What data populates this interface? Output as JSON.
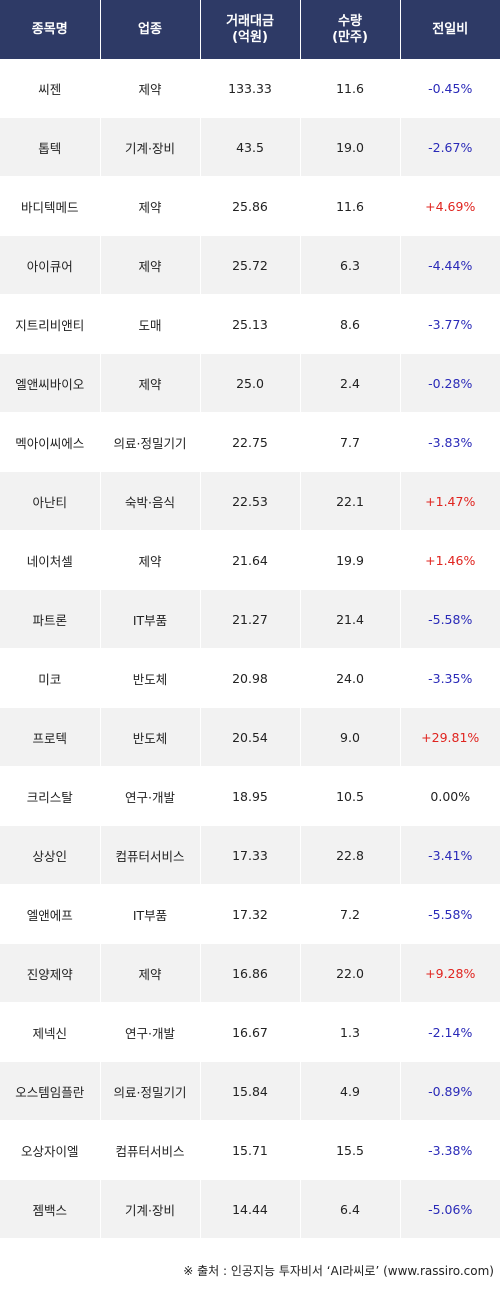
{
  "headers": {
    "name": "종목명",
    "sector": "업종",
    "value_l1": "거래대금",
    "value_l2": "(억원)",
    "volume_l1": "수량",
    "volume_l2": "(만주)",
    "change": "전일비"
  },
  "colors": {
    "header_bg": "#2e3a66",
    "up": "#e0241f",
    "down": "#2a2ab8",
    "even_row": "#f2f2f2"
  },
  "rows": [
    {
      "name": "씨젠",
      "sector": "제약",
      "value": "133.33",
      "volume": "11.6",
      "change": "-0.45%",
      "dir": "down"
    },
    {
      "name": "톱텍",
      "sector": "기계·장비",
      "value": "43.5",
      "volume": "19.0",
      "change": "-2.67%",
      "dir": "down"
    },
    {
      "name": "바디텍메드",
      "sector": "제약",
      "value": "25.86",
      "volume": "11.6",
      "change": "+4.69%",
      "dir": "up"
    },
    {
      "name": "아이큐어",
      "sector": "제약",
      "value": "25.72",
      "volume": "6.3",
      "change": "-4.44%",
      "dir": "down"
    },
    {
      "name": "지트리비앤티",
      "sector": "도매",
      "value": "25.13",
      "volume": "8.6",
      "change": "-3.77%",
      "dir": "down"
    },
    {
      "name": "엘앤씨바이오",
      "sector": "제약",
      "value": "25.0",
      "volume": "2.4",
      "change": "-0.28%",
      "dir": "down"
    },
    {
      "name": "멕아이씨에스",
      "sector": "의료·정밀기기",
      "value": "22.75",
      "volume": "7.7",
      "change": "-3.83%",
      "dir": "down"
    },
    {
      "name": "아난티",
      "sector": "숙박·음식",
      "value": "22.53",
      "volume": "22.1",
      "change": "+1.47%",
      "dir": "up"
    },
    {
      "name": "네이처셀",
      "sector": "제약",
      "value": "21.64",
      "volume": "19.9",
      "change": "+1.46%",
      "dir": "up"
    },
    {
      "name": "파트론",
      "sector": "IT부품",
      "value": "21.27",
      "volume": "21.4",
      "change": "-5.58%",
      "dir": "down"
    },
    {
      "name": "미코",
      "sector": "반도체",
      "value": "20.98",
      "volume": "24.0",
      "change": "-3.35%",
      "dir": "down"
    },
    {
      "name": "프로텍",
      "sector": "반도체",
      "value": "20.54",
      "volume": "9.0",
      "change": "+29.81%",
      "dir": "up"
    },
    {
      "name": "크리스탈",
      "sector": "연구·개발",
      "value": "18.95",
      "volume": "10.5",
      "change": "0.00%",
      "dir": "flat"
    },
    {
      "name": "상상인",
      "sector": "컴퓨터서비스",
      "value": "17.33",
      "volume": "22.8",
      "change": "-3.41%",
      "dir": "down"
    },
    {
      "name": "엘앤에프",
      "sector": "IT부품",
      "value": "17.32",
      "volume": "7.2",
      "change": "-5.58%",
      "dir": "down"
    },
    {
      "name": "진양제약",
      "sector": "제약",
      "value": "16.86",
      "volume": "22.0",
      "change": "+9.28%",
      "dir": "up"
    },
    {
      "name": "제넥신",
      "sector": "연구·개발",
      "value": "16.67",
      "volume": "1.3",
      "change": "-2.14%",
      "dir": "down"
    },
    {
      "name": "오스템임플란",
      "sector": "의료·정밀기기",
      "value": "15.84",
      "volume": "4.9",
      "change": "-0.89%",
      "dir": "down"
    },
    {
      "name": "오상자이엘",
      "sector": "컴퓨터서비스",
      "value": "15.71",
      "volume": "15.5",
      "change": "-3.38%",
      "dir": "down"
    },
    {
      "name": "젬백스",
      "sector": "기계·장비",
      "value": "14.44",
      "volume": "6.4",
      "change": "-5.06%",
      "dir": "down"
    }
  ],
  "footer": "※ 출처 : 인공지능 투자비서 ‘AI라씨로’ (www.rassiro.com)"
}
